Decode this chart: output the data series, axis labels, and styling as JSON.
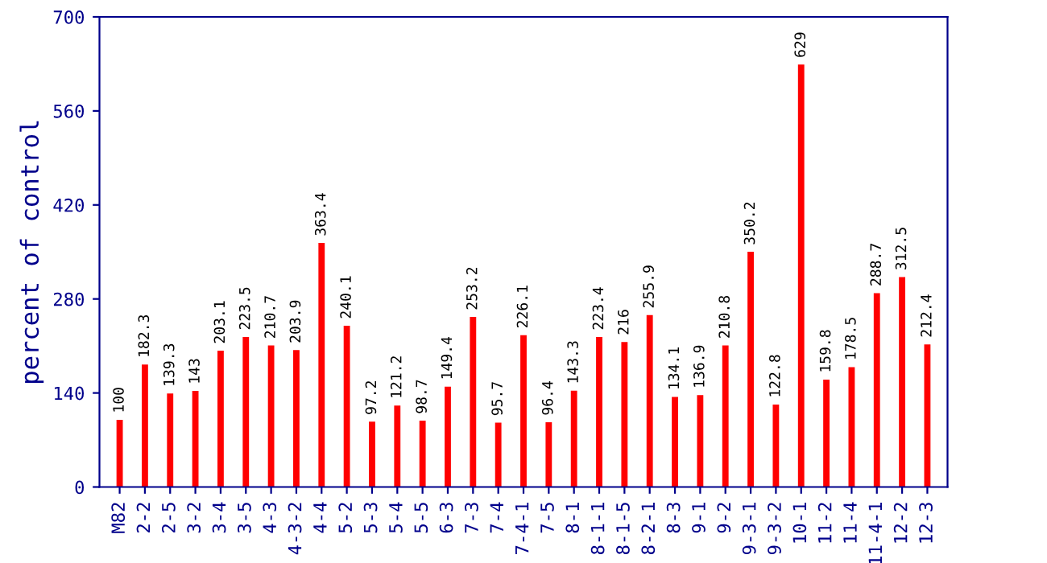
{
  "chart_data": {
    "type": "bar",
    "ylabel": "percent of control",
    "categories": [
      "M82",
      "2-2",
      "2-5",
      "3-2",
      "3-4",
      "3-5",
      "4-3",
      "4-3-2",
      "4-4",
      "5-2",
      "5-3",
      "5-4",
      "5-5",
      "6-3",
      "7-3",
      "7-4",
      "7-4-1",
      "7-5",
      "8-1",
      "8-1-1",
      "8-1-5",
      "8-2-1",
      "8-3",
      "9-1",
      "9-2",
      "9-3-1",
      "9-3-2",
      "10-1",
      "11-2",
      "11-4",
      "11-4-1",
      "12-2",
      "12-3"
    ],
    "values": [
      100,
      182.3,
      139.3,
      143,
      203.1,
      223.5,
      210.7,
      203.9,
      363.4,
      240.1,
      97.2,
      121.2,
      98.7,
      149.4,
      253.2,
      95.7,
      226.1,
      96.4,
      143.3,
      223.4,
      216,
      255.9,
      134.1,
      136.9,
      210.8,
      350.2,
      122.8,
      629,
      159.8,
      178.5,
      288.7,
      312.5,
      212.4
    ],
    "color": "#ff0000",
    "ylim": [
      0,
      700
    ],
    "yticks": [
      0,
      140,
      280,
      420,
      560,
      700
    ],
    "data_labels": true,
    "grid": false,
    "legend": false
  }
}
